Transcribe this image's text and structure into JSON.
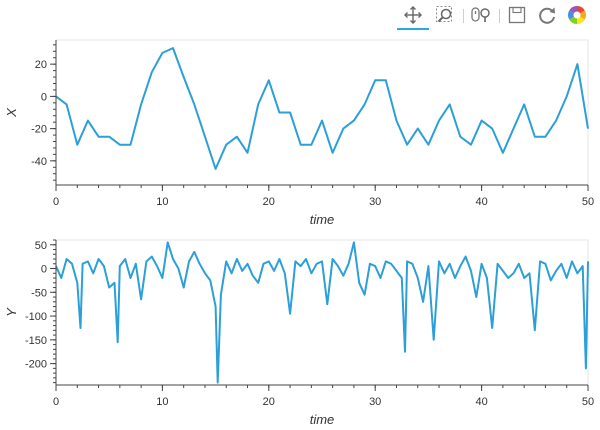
{
  "toolbar": {
    "tools": [
      {
        "name": "pan-tool",
        "icon": "move-arrows-icon",
        "active": true
      },
      {
        "name": "box-zoom-tool",
        "icon": "box-zoom-icon",
        "active": false
      },
      {
        "name": "wheel-zoom-tool",
        "icon": "wheel-zoom-icon",
        "active": false
      },
      {
        "name": "save-tool",
        "icon": "save-icon",
        "active": false
      },
      {
        "name": "reset-tool",
        "icon": "reset-icon",
        "active": false
      },
      {
        "name": "bokeh-logo",
        "icon": "bokeh-logo-icon",
        "active": false
      }
    ]
  },
  "colors": {
    "line": "#2d9fd8",
    "axis": "#444444",
    "grid": "#e6e6e6",
    "active": "#26aae1"
  },
  "chart_data": [
    {
      "type": "line",
      "xlabel": "time",
      "ylabel": "X",
      "xlim": [
        0,
        50
      ],
      "ylim": [
        -55,
        35
      ],
      "xticks": [
        0,
        10,
        20,
        30,
        40,
        50
      ],
      "yticks": [
        -40,
        -20,
        0,
        20
      ],
      "grid": false,
      "series": [
        {
          "x": [
            0,
            1,
            2,
            3,
            4,
            5,
            6,
            7,
            8,
            9,
            10,
            11,
            12,
            13,
            14,
            15,
            16,
            17,
            18,
            19,
            20,
            21,
            22,
            23,
            24,
            25,
            26,
            27,
            28,
            29,
            30,
            31,
            32,
            33,
            34,
            35,
            36,
            37,
            38,
            39,
            40,
            41,
            42,
            43,
            44,
            45,
            46,
            47,
            48,
            49,
            50
          ],
          "values": [
            0,
            -5,
            -30,
            -15,
            -25,
            -25,
            -30,
            -30,
            -5,
            15,
            27,
            30,
            12,
            -5,
            -25,
            -45,
            -30,
            -25,
            -35,
            -5,
            10,
            -10,
            -10,
            -30,
            -30,
            -15,
            -35,
            -20,
            -15,
            -5,
            10,
            10,
            -15,
            -30,
            -20,
            -30,
            -15,
            -5,
            -25,
            -30,
            -15,
            -20,
            -35,
            -20,
            -5,
            -25,
            -25,
            -15,
            0,
            20,
            -20
          ]
        }
      ]
    },
    {
      "type": "line",
      "xlabel": "time",
      "ylabel": "Y",
      "xlim": [
        0,
        50
      ],
      "ylim": [
        -245,
        60
      ],
      "xticks": [
        0,
        10,
        20,
        30,
        40,
        50
      ],
      "yticks": [
        -200,
        -150,
        -100,
        -50,
        0,
        50
      ],
      "grid": false,
      "series": [
        {
          "x": [
            0,
            0.5,
            1,
            1.5,
            2,
            2.3,
            2.5,
            3,
            3.5,
            4,
            4.5,
            5,
            5.5,
            5.8,
            6,
            6.5,
            7,
            7.5,
            8,
            8.5,
            9,
            9.5,
            10,
            10.5,
            11,
            11.5,
            12,
            12.5,
            13,
            13.5,
            14,
            14.5,
            15,
            15.2,
            15.5,
            16,
            16.5,
            17,
            17.5,
            18,
            18.5,
            19,
            19.5,
            20,
            20.5,
            21,
            21.5,
            22,
            22.5,
            23,
            23.5,
            24,
            24.5,
            25,
            25.5,
            26,
            26.5,
            27,
            27.5,
            28,
            28.5,
            29,
            29.5,
            30,
            30.5,
            31,
            31.5,
            32,
            32.5,
            32.8,
            33,
            33.5,
            34,
            34.5,
            35,
            35.5,
            36,
            36.5,
            37,
            37.5,
            38,
            38.5,
            39,
            39.5,
            40,
            40.5,
            41,
            41.5,
            42,
            42.5,
            43,
            43.5,
            44,
            44.5,
            45,
            45.5,
            46,
            46.5,
            47,
            47.5,
            48,
            48.5,
            49,
            49.5,
            49.8,
            50
          ],
          "values": [
            5,
            -20,
            20,
            10,
            -30,
            -125,
            10,
            15,
            -10,
            20,
            5,
            -40,
            -30,
            -155,
            5,
            20,
            -20,
            10,
            -65,
            15,
            25,
            5,
            -20,
            55,
            20,
            0,
            -40,
            15,
            35,
            10,
            -10,
            -25,
            -80,
            -240,
            -55,
            15,
            -10,
            20,
            -5,
            10,
            -15,
            -30,
            10,
            15,
            -5,
            20,
            -10,
            -95,
            15,
            5,
            20,
            -10,
            10,
            15,
            -75,
            20,
            5,
            -15,
            10,
            55,
            -30,
            -55,
            10,
            5,
            -20,
            15,
            10,
            -5,
            -20,
            -175,
            15,
            10,
            -20,
            -70,
            5,
            -150,
            15,
            -10,
            10,
            -20,
            5,
            25,
            -5,
            -60,
            10,
            -20,
            -125,
            10,
            -5,
            -20,
            -10,
            10,
            -20,
            -10,
            -130,
            15,
            10,
            -25,
            -5,
            10,
            -20,
            15,
            -10,
            5,
            -210,
            15
          ]
        }
      ]
    }
  ]
}
